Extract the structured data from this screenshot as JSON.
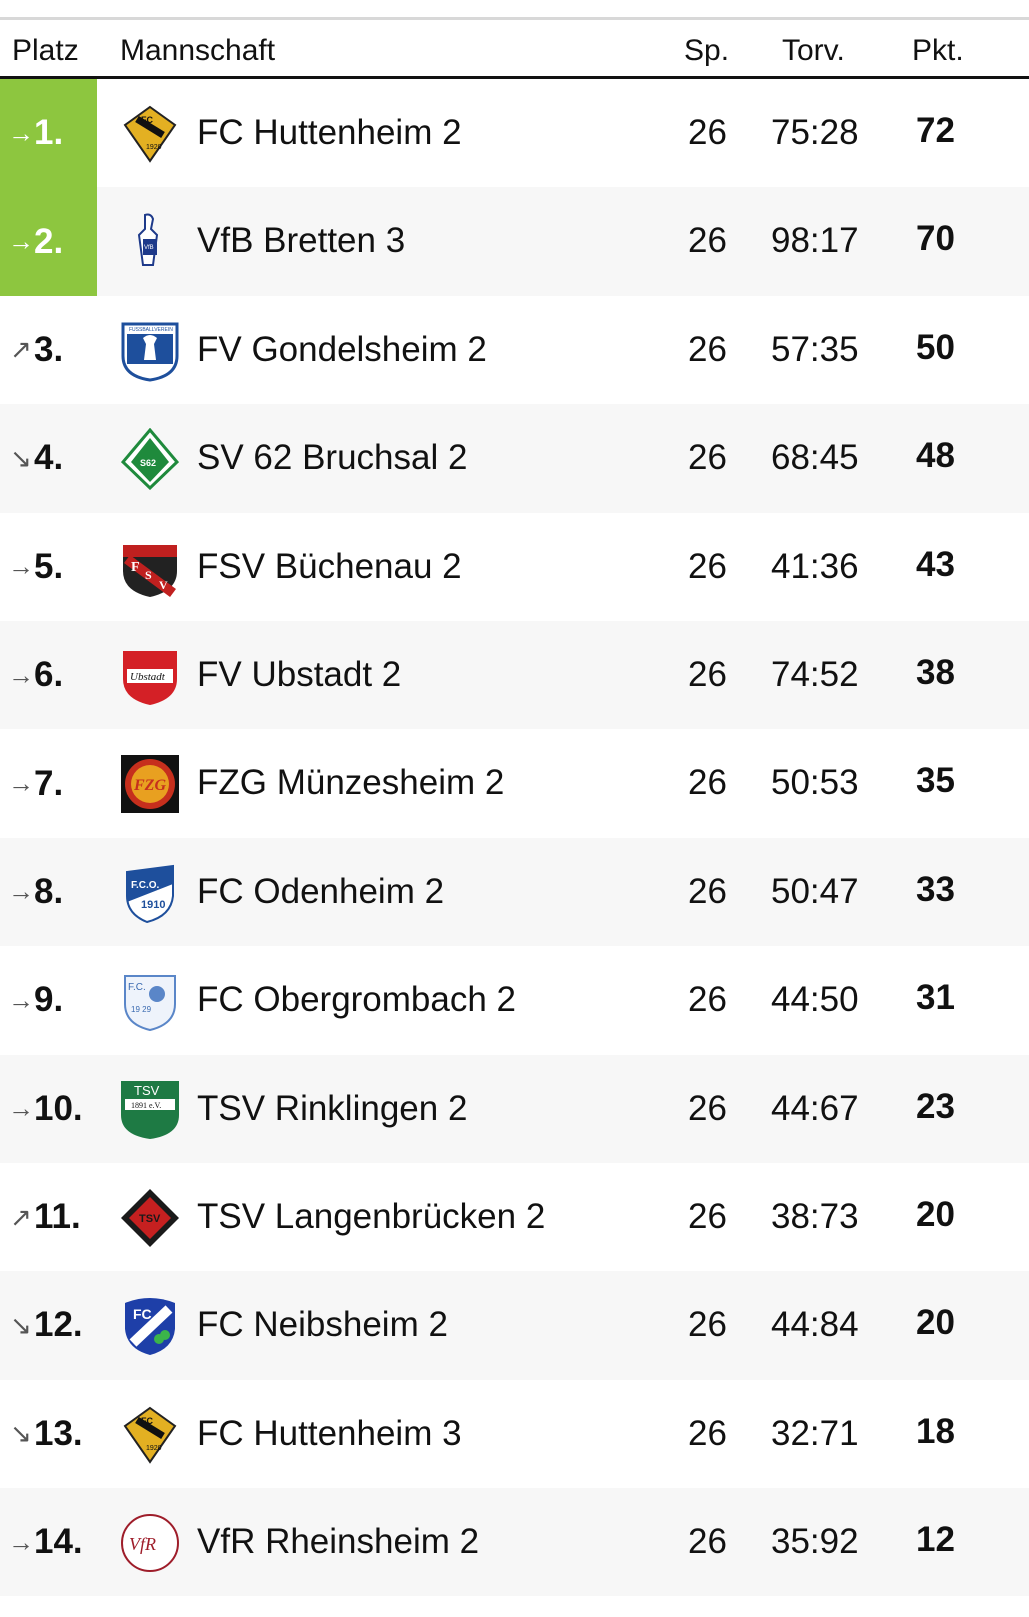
{
  "header": {
    "platz": "Platz",
    "mannschaft": "Mannschaft",
    "sp": "Sp.",
    "torv": "Torv.",
    "pkt": "Pkt."
  },
  "colors": {
    "promotion": "#8dc63f"
  },
  "rows": [
    {
      "trend": "→",
      "trend_icon": "arrow-right-icon",
      "rank": "1.",
      "team": "FC Huttenheim 2",
      "sp": "26",
      "torv": "75:28",
      "pkt": "72",
      "promo": true,
      "logo": "fc-huttenheim-crest"
    },
    {
      "trend": "→",
      "trend_icon": "arrow-right-icon",
      "rank": "2.",
      "team": "VfB Bretten 3",
      "sp": "26",
      "torv": "98:17",
      "pkt": "70",
      "promo": true,
      "logo": "vfb-bretten-crest"
    },
    {
      "trend": "↗",
      "trend_icon": "arrow-up-right-icon",
      "rank": "3.",
      "team": "FV Gondelsheim 2",
      "sp": "26",
      "torv": "57:35",
      "pkt": "50",
      "logo": "fv-gondelsheim-crest"
    },
    {
      "trend": "↘",
      "trend_icon": "arrow-down-right-icon",
      "rank": "4.",
      "team": "SV 62 Bruchsal 2",
      "sp": "26",
      "torv": "68:45",
      "pkt": "48",
      "logo": "sv-bruchsal-crest"
    },
    {
      "trend": "→",
      "trend_icon": "arrow-right-icon",
      "rank": "5.",
      "team": "FSV Büchenau 2",
      "sp": "26",
      "torv": "41:36",
      "pkt": "43",
      "logo": "fsv-buechenau-crest"
    },
    {
      "trend": "→",
      "trend_icon": "arrow-right-icon",
      "rank": "6.",
      "team": "FV Ubstadt 2",
      "sp": "26",
      "torv": "74:52",
      "pkt": "38",
      "logo": "fv-ubstadt-crest"
    },
    {
      "trend": "→",
      "trend_icon": "arrow-right-icon",
      "rank": "7.",
      "team": "FZG Münzesheim 2",
      "sp": "26",
      "torv": "50:53",
      "pkt": "35",
      "logo": "fzg-muenzesheim-crest"
    },
    {
      "trend": "→",
      "trend_icon": "arrow-right-icon",
      "rank": "8.",
      "team": "FC Odenheim 2",
      "sp": "26",
      "torv": "50:47",
      "pkt": "33",
      "logo": "fc-odenheim-crest"
    },
    {
      "trend": "→",
      "trend_icon": "arrow-right-icon",
      "rank": "9.",
      "team": "FC Obergrombach 2",
      "sp": "26",
      "torv": "44:50",
      "pkt": "31",
      "logo": "fc-obergrombach-crest"
    },
    {
      "trend": "→",
      "trend_icon": "arrow-right-icon",
      "rank": "10.",
      "team": "TSV Rinklingen 2",
      "sp": "26",
      "torv": "44:67",
      "pkt": "23",
      "logo": "tsv-rinklingen-crest"
    },
    {
      "trend": "↗",
      "trend_icon": "arrow-up-right-icon",
      "rank": "11.",
      "team": "TSV Langenbrücken 2",
      "sp": "26",
      "torv": "38:73",
      "pkt": "20",
      "logo": "tsv-langenbruecken-crest"
    },
    {
      "trend": "↘",
      "trend_icon": "arrow-down-right-icon",
      "rank": "12.",
      "team": "FC Neibsheim 2",
      "sp": "26",
      "torv": "44:84",
      "pkt": "20",
      "logo": "fc-neibsheim-crest"
    },
    {
      "trend": "↘",
      "trend_icon": "arrow-down-right-icon",
      "rank": "13.",
      "team": "FC Huttenheim 3",
      "sp": "26",
      "torv": "32:71",
      "pkt": "18",
      "logo": "fc-huttenheim-crest"
    },
    {
      "trend": "→",
      "trend_icon": "arrow-right-icon",
      "rank": "14.",
      "team": "VfR Rheinsheim 2",
      "sp": "26",
      "torv": "35:92",
      "pkt": "12",
      "logo": "vfr-rheinsheim-crest"
    }
  ]
}
